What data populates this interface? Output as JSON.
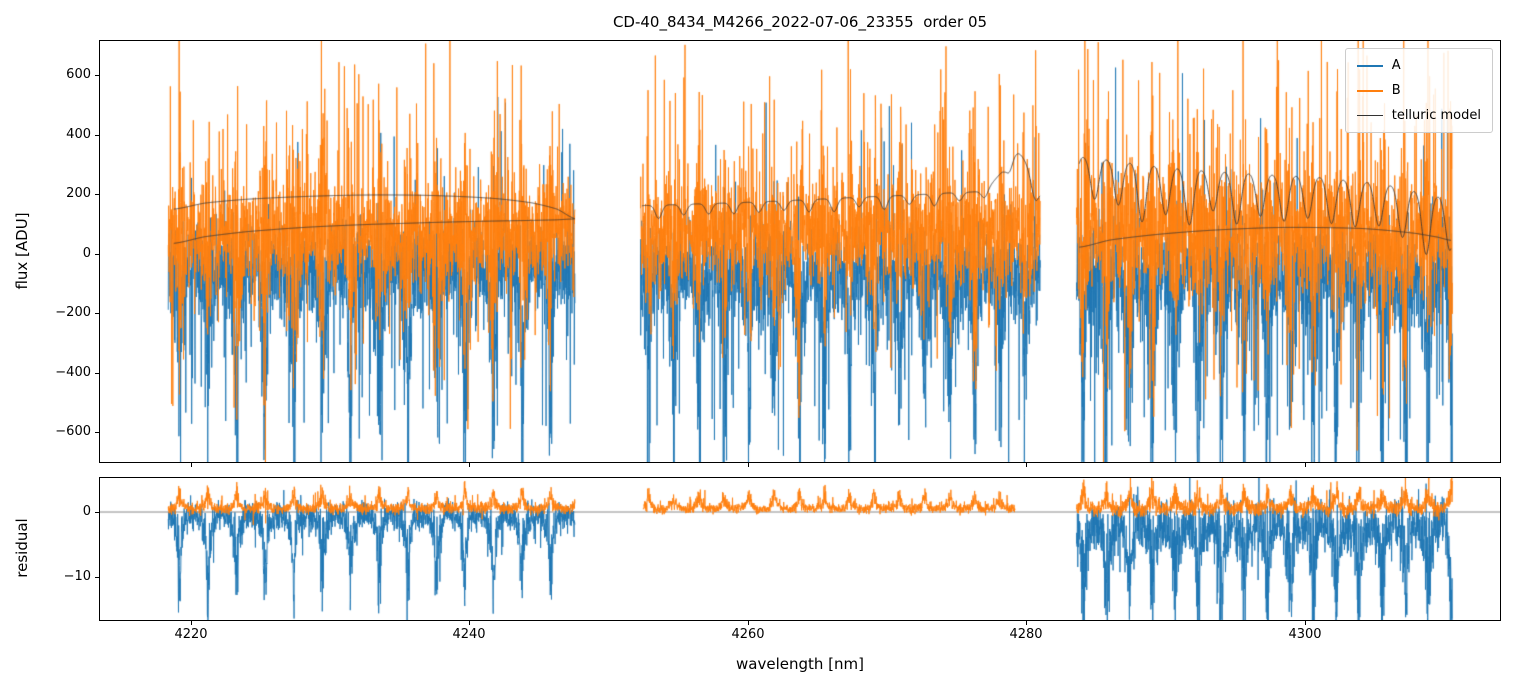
{
  "chart_data": {
    "type": "line",
    "title": "CD-40_8434_M4266_2022-07-06_23355  order 05",
    "xlabel": "wavelength [nm]",
    "xlim": [
      4213.5,
      4314.0
    ],
    "x_ticks": [
      4220,
      4240,
      4260,
      4280,
      4300
    ],
    "grid": false,
    "legend_position": "upper right",
    "panels": [
      {
        "name": "flux",
        "ylabel": "flux [ADU]",
        "ylim": [
          -700,
          715
        ],
        "y_ticks": [
          600,
          400,
          200,
          0,
          -200,
          -400,
          -600
        ]
      },
      {
        "name": "residual",
        "ylabel": "residual",
        "ylim": [
          -16.5,
          5.2
        ],
        "y_ticks": [
          0,
          -10
        ],
        "hline": 0
      }
    ],
    "legend": [
      {
        "label": "A",
        "color": "#1f77b4",
        "lw": 2
      },
      {
        "label": "B",
        "color": "#ff7f0e",
        "lw": 2
      },
      {
        "label": "telluric model",
        "color": "#333333",
        "lw": 1
      }
    ],
    "segments": [
      {
        "x0": 4218.4,
        "x1": 4247.6,
        "comb": {
          "period": 2.05,
          "phase": 4219.2,
          "width": 0.1,
          "wide_width": 0.38
        },
        "flux": {
          "A": {
            "base": -40,
            "band": 140,
            "comb_gain": 2.2,
            "comb_down": 380,
            "tail_p": 0.05,
            "tail_up_prob": 0.35,
            "tail_amp": 380
          },
          "B": {
            "base": 60,
            "band": 150,
            "comb_gain": 2.2,
            "comb_down": 60,
            "tail_p": 0.06,
            "tail_up_prob": 0.72,
            "tail_amp": 380
          }
        },
        "residual": {
          "A": {
            "present": true,
            "base": -0.5,
            "band": 2.0,
            "comb_gain": 1.5,
            "comb_down": 9,
            "tail_p": 0.02,
            "tail_up_prob": 0.3,
            "tail_amp": 4
          },
          "B": {
            "present": true,
            "base": 0.5,
            "band": 0.8,
            "comb_gain": 0.4,
            "comb_down": -2.2,
            "tail_p": 0.02,
            "tail_up_prob": 0.8,
            "tail_amp": 1.5
          }
        },
        "models": [
          {
            "base": [
              [
                4218.8,
                150
              ],
              [
                4221,
                170
              ],
              [
                4224,
                183
              ],
              [
                4228,
                192
              ],
              [
                4232,
                197
              ],
              [
                4236,
                197
              ],
              [
                4239,
                193
              ],
              [
                4242,
                185
              ],
              [
                4244.5,
                171
              ],
              [
                4246.3,
                150
              ],
              [
                4247.6,
                118
              ]
            ]
          },
          {
            "base": [
              [
                4218.8,
                35
              ],
              [
                4221,
                57
              ],
              [
                4224,
                74
              ],
              [
                4228,
                88
              ],
              [
                4232,
                97
              ],
              [
                4236,
                103
              ],
              [
                4239,
                107
              ],
              [
                4242,
                110
              ],
              [
                4244.5,
                112
              ],
              [
                4246.3,
                114
              ],
              [
                4247.6,
                117
              ]
            ]
          }
        ]
      },
      {
        "x0": 4252.3,
        "x1": 4281.0,
        "residual_x": [
          4252.5,
          4279.2
        ],
        "comb": {
          "period": 1.8,
          "phase": 4252.9,
          "width": 0.1,
          "wide_width": 0.34
        },
        "flux": {
          "A": {
            "base": -60,
            "band": 150,
            "comb_gain": 1.7,
            "comb_down": 330,
            "tail_p": 0.05,
            "tail_up_prob": 0.3,
            "tail_amp": 380
          },
          "B": {
            "base": 70,
            "band": 155,
            "comb_gain": 1.7,
            "comb_down": 50,
            "tail_p": 0.06,
            "tail_up_prob": 0.72,
            "tail_amp": 380
          }
        },
        "residual": {
          "A": {
            "present": false
          },
          "B": {
            "present": true,
            "base": 0.5,
            "band": 0.7,
            "comb_gain": 0.5,
            "comb_down": -2.0,
            "tail_p": 0.02,
            "tail_up_prob": 0.9,
            "tail_amp": 1.5
          }
        },
        "models": [
          {
            "base": [
              [
                4252.4,
                162
              ],
              [
                4256,
                167
              ],
              [
                4260,
                173
              ],
              [
                4264,
                181
              ],
              [
                4268,
                190
              ],
              [
                4272,
                198
              ],
              [
                4275,
                206
              ],
              [
                4277,
                216
              ],
              [
                4278.4,
                282
              ],
              [
                4279.2,
                335
              ],
              [
                4279.8,
                318
              ],
              [
                4280.6,
                232
              ],
              [
                4281.0,
                205
              ]
            ],
            "dip": {
              "period": 1.8,
              "phase": 4253.6,
              "width": 0.32,
              "depth": 42
            }
          }
        ]
      },
      {
        "x0": 4283.6,
        "x1": 4310.6,
        "comb": {
          "period": 1.65,
          "phase": 4284.1,
          "width": 0.1,
          "wide_width": 0.36
        },
        "flux": {
          "A": {
            "base": -50,
            "band": 160,
            "comb_gain": 2.0,
            "comb_down": 380,
            "tail_p": 0.06,
            "tail_up_prob": 0.32,
            "tail_amp": 400
          },
          "B": {
            "base": 70,
            "band": 170,
            "comb_gain": 2.0,
            "comb_down": 60,
            "tail_p": 0.07,
            "tail_up_prob": 0.72,
            "tail_amp": 400
          }
        },
        "residual": {
          "A": {
            "present": true,
            "base": -2,
            "band": 3.4,
            "comb_gain": 1.8,
            "comb_down": 10,
            "tail_p": 0.03,
            "tail_up_prob": 0.3,
            "tail_amp": 5
          },
          "B": {
            "present": true,
            "base": 0.5,
            "band": 1.1,
            "comb_gain": 0.5,
            "comb_down": -2.5,
            "tail_p": 0.02,
            "tail_up_prob": 0.9,
            "tail_amp": 2
          }
        },
        "models": [
          {
            "base": [
              [
                4283.8,
                330
              ],
              [
                4286,
                318
              ],
              [
                4289,
                300
              ],
              [
                4292,
                286
              ],
              [
                4295,
                276
              ],
              [
                4298,
                268
              ],
              [
                4301,
                261
              ],
              [
                4303,
                251
              ],
              [
                4305,
                241
              ],
              [
                4307,
                226
              ],
              [
                4308.5,
                206
              ],
              [
                4310.5,
                190
              ]
            ],
            "dip": {
              "period": 1.7,
              "phase": 4284.9,
              "width": 0.42,
              "depth": 185
            }
          },
          {
            "base": [
              [
                4283.8,
                22
              ],
              [
                4286,
                46
              ],
              [
                4289,
                63
              ],
              [
                4292,
                75
              ],
              [
                4295,
                83
              ],
              [
                4298,
                88
              ],
              [
                4301,
                88
              ],
              [
                4304,
                85
              ],
              [
                4306,
                78
              ],
              [
                4308,
                68
              ],
              [
                4309.5,
                56
              ],
              [
                4310.5,
                45
              ]
            ]
          }
        ]
      }
    ]
  }
}
